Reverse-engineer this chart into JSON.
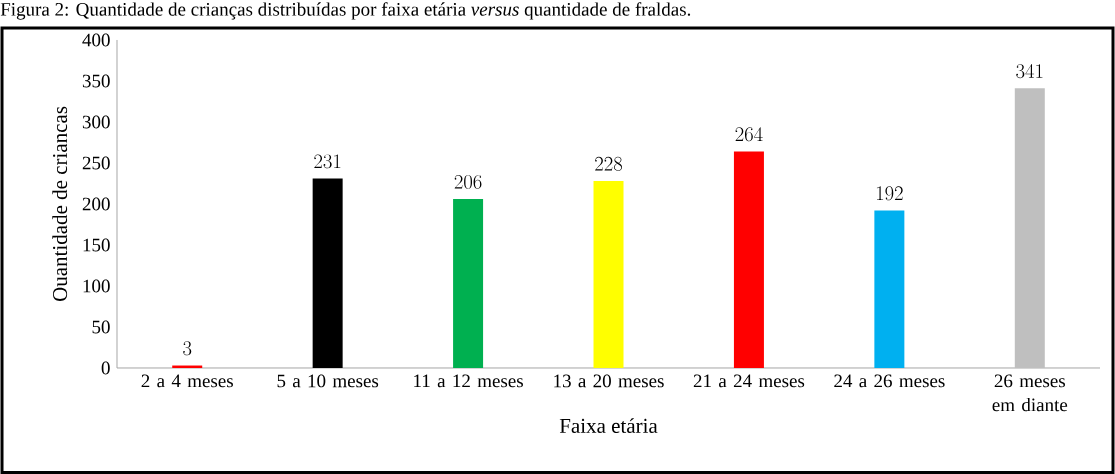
{
  "chart_data": {
    "type": "bar",
    "title": "Figura 2: Quantidade de crianças distribuídas por faixa etária *versus* quantidade de fraldas.",
    "xlabel": "Faixa etária",
    "ylabel": "Ouantidade de criancas",
    "categories": [
      "2 a 4 meses",
      "5 a 10 meses",
      "11 a 12 meses",
      "13 a 20 meses",
      "21 a 24 meses",
      "24 a 26 meses",
      "26 meses em diante"
    ],
    "values": [
      3,
      231,
      206,
      228,
      264,
      192,
      341
    ],
    "colors": [
      "#ff0000",
      "#000000",
      "#00b050",
      "#ffff00",
      "#ff0000",
      "#00b0f0",
      "#bfbfbf"
    ],
    "ylim": [
      0,
      400
    ],
    "yticks": [
      0,
      50,
      100,
      150,
      200,
      250,
      300,
      350,
      400
    ],
    "data_labels": true,
    "grid": false
  }
}
